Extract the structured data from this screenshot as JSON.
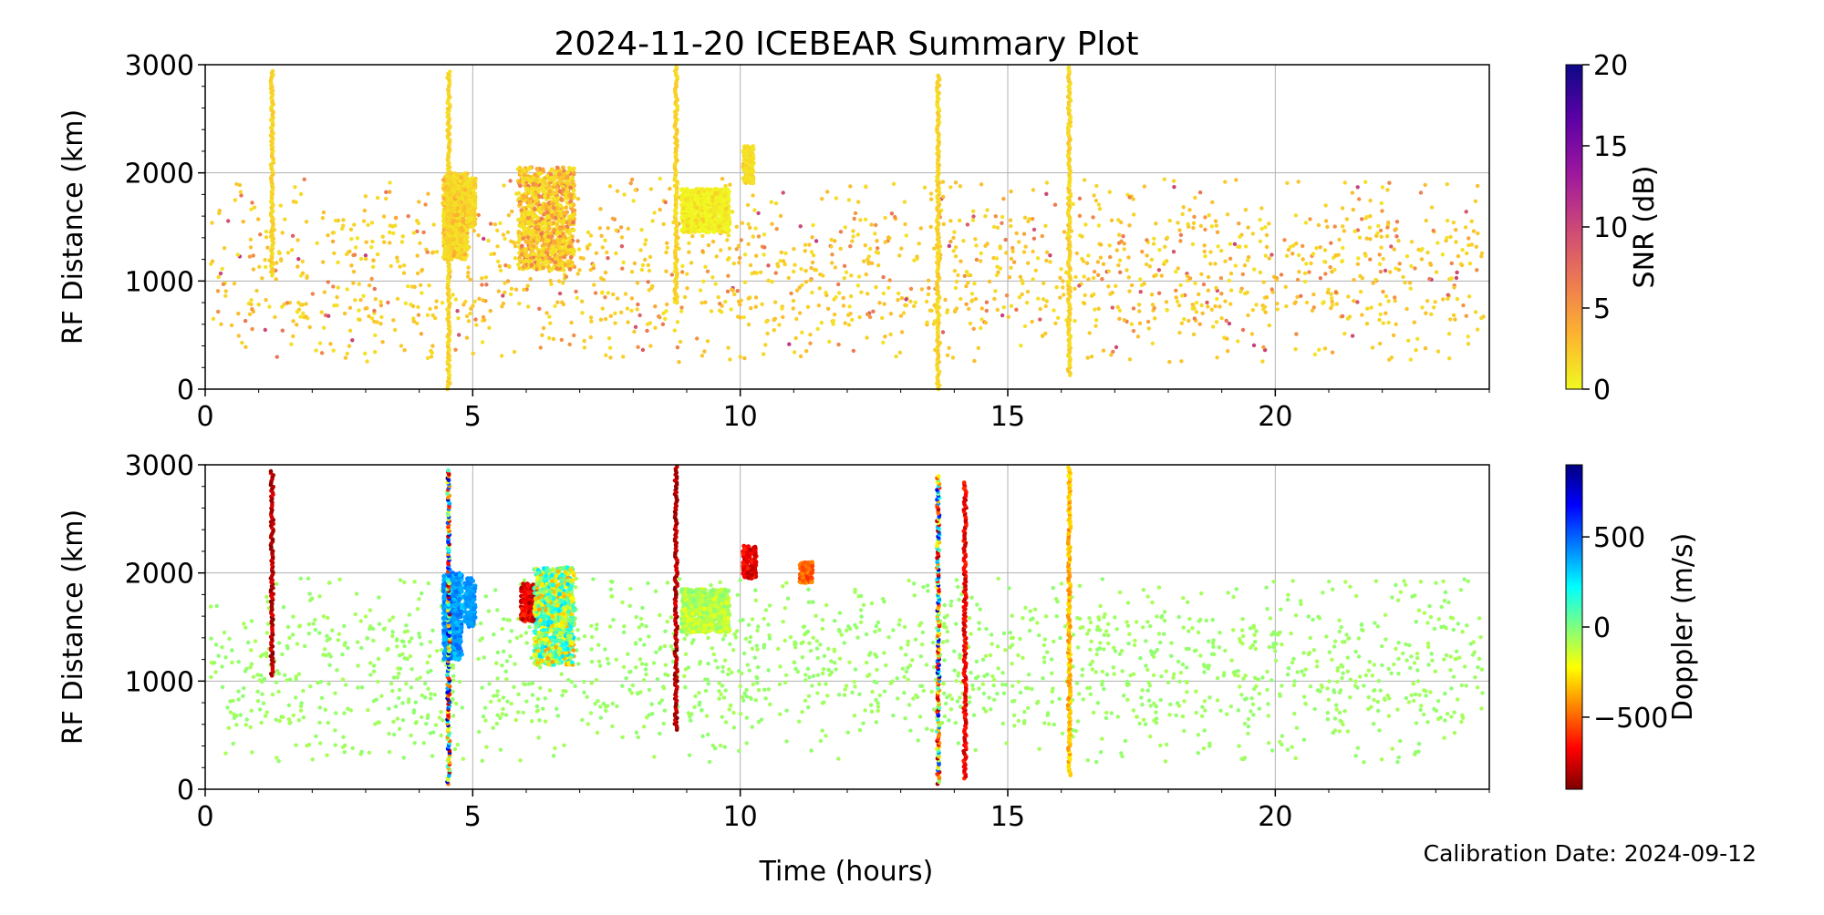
{
  "figure": {
    "title": "2024-11-20 ICEBEAR Summary Plot",
    "xlabel": "Time (hours)",
    "footnote": "Calibration Date: 2024-09-12"
  },
  "chart_data": [
    {
      "type": "scatter",
      "panel": "top",
      "xlabel": "",
      "ylabel": "RF Distance (km)",
      "xlim": [
        0,
        24
      ],
      "ylim": [
        0,
        3000
      ],
      "x_ticks": [
        0,
        5,
        10,
        15,
        20
      ],
      "y_ticks": [
        0,
        1000,
        2000,
        3000
      ],
      "grid": true,
      "colorbar": {
        "label": "SNR (dB)",
        "range": [
          0,
          20
        ],
        "ticks": [
          0,
          5,
          10,
          15,
          20
        ],
        "colormap": "plasma_r",
        "stops": [
          "#f0f921",
          "#fdb42f",
          "#ed7953",
          "#cc4778",
          "#9c179e",
          "#5c01a6",
          "#0d0887"
        ]
      },
      "columns": [
        {
          "x": 1.25,
          "y0": 1050,
          "y1": 2950,
          "snr": 1
        },
        {
          "x": 4.55,
          "y0": 0,
          "y1": 2950,
          "snr": 1
        },
        {
          "x": 8.8,
          "y0": 800,
          "y1": 2980,
          "snr": 1
        },
        {
          "x": 13.7,
          "y0": 0,
          "y1": 2900,
          "snr": 1
        },
        {
          "x": 16.15,
          "y0": 130,
          "y1": 2980,
          "snr": 1
        }
      ],
      "clusters": [
        {
          "x0": 4.45,
          "x1": 4.9,
          "y0": 1200,
          "y1": 2000,
          "snr_min": 1,
          "snr_max": 4
        },
        {
          "x0": 4.9,
          "x1": 5.05,
          "y0": 1500,
          "y1": 1950,
          "snr_min": 1,
          "snr_max": 3
        },
        {
          "x0": 5.85,
          "x1": 6.9,
          "y0": 1100,
          "y1": 2050,
          "snr_min": 1,
          "snr_max": 7
        },
        {
          "x0": 8.9,
          "x1": 9.8,
          "y0": 1450,
          "y1": 1850,
          "snr_min": 0,
          "snr_max": 2
        },
        {
          "x0": 10.05,
          "x1": 10.25,
          "y0": 1900,
          "y1": 2250,
          "snr_min": 1,
          "snr_max": 3
        }
      ],
      "background_scatter": {
        "x_range": [
          0.1,
          23.9
        ],
        "y_range": [
          250,
          1950
        ],
        "snr_range": [
          0,
          8
        ]
      }
    },
    {
      "type": "scatter",
      "panel": "bottom",
      "xlabel": "Time (hours)",
      "ylabel": "RF Distance (km)",
      "xlim": [
        0,
        24
      ],
      "ylim": [
        0,
        3000
      ],
      "x_ticks": [
        0,
        5,
        10,
        15,
        20
      ],
      "y_ticks": [
        0,
        1000,
        2000,
        3000
      ],
      "grid": true,
      "colorbar": {
        "label": "Doppler (m/s)",
        "range": [
          -900,
          900
        ],
        "ticks": [
          -500,
          0,
          500
        ],
        "colormap": "jet_r",
        "stops": [
          "#7f0000",
          "#ff0000",
          "#ff7f00",
          "#ffff00",
          "#7fff7f",
          "#00ffff",
          "#007fff",
          "#0000ff",
          "#00007f"
        ]
      },
      "columns": [
        {
          "x": 1.25,
          "y0": 1050,
          "y1": 2950,
          "doppler": -800
        },
        {
          "x": 4.55,
          "y0": 50,
          "y1": 2950,
          "doppler": 0
        },
        {
          "x": 8.8,
          "y0": 550,
          "y1": 2980,
          "doppler": -800
        },
        {
          "x": 13.7,
          "y0": 50,
          "y1": 2900,
          "doppler": 0
        },
        {
          "x": 14.2,
          "y0": 100,
          "y1": 2850,
          "doppler": -700
        },
        {
          "x": 16.15,
          "y0": 130,
          "y1": 2980,
          "doppler": -350
        }
      ],
      "clusters": [
        {
          "x0": 4.45,
          "x1": 4.8,
          "y0": 1200,
          "y1": 2000,
          "doppler_min": 300,
          "doppler_max": 500
        },
        {
          "x0": 4.85,
          "x1": 5.05,
          "y0": 1500,
          "y1": 1950,
          "doppler_min": 350,
          "doppler_max": 450
        },
        {
          "x0": 5.9,
          "x1": 6.2,
          "y0": 1550,
          "y1": 1900,
          "doppler_min": -850,
          "doppler_max": -600
        },
        {
          "x0": 6.15,
          "x1": 6.9,
          "y0": 1150,
          "y1": 2050,
          "doppler_min": -400,
          "doppler_max": 300
        },
        {
          "x0": 8.9,
          "x1": 9.8,
          "y0": 1450,
          "y1": 1850,
          "doppler_min": -200,
          "doppler_max": 0
        },
        {
          "x0": 10.05,
          "x1": 10.3,
          "y0": 1950,
          "y1": 2250,
          "doppler_min": -800,
          "doppler_max": -600
        },
        {
          "x0": 11.1,
          "x1": 11.35,
          "y0": 1900,
          "y1": 2100,
          "doppler_min": -600,
          "doppler_max": -400
        }
      ],
      "background_scatter": {
        "x_range": [
          0.1,
          23.9
        ],
        "y_range": [
          250,
          1950
        ],
        "doppler": -50
      }
    }
  ]
}
